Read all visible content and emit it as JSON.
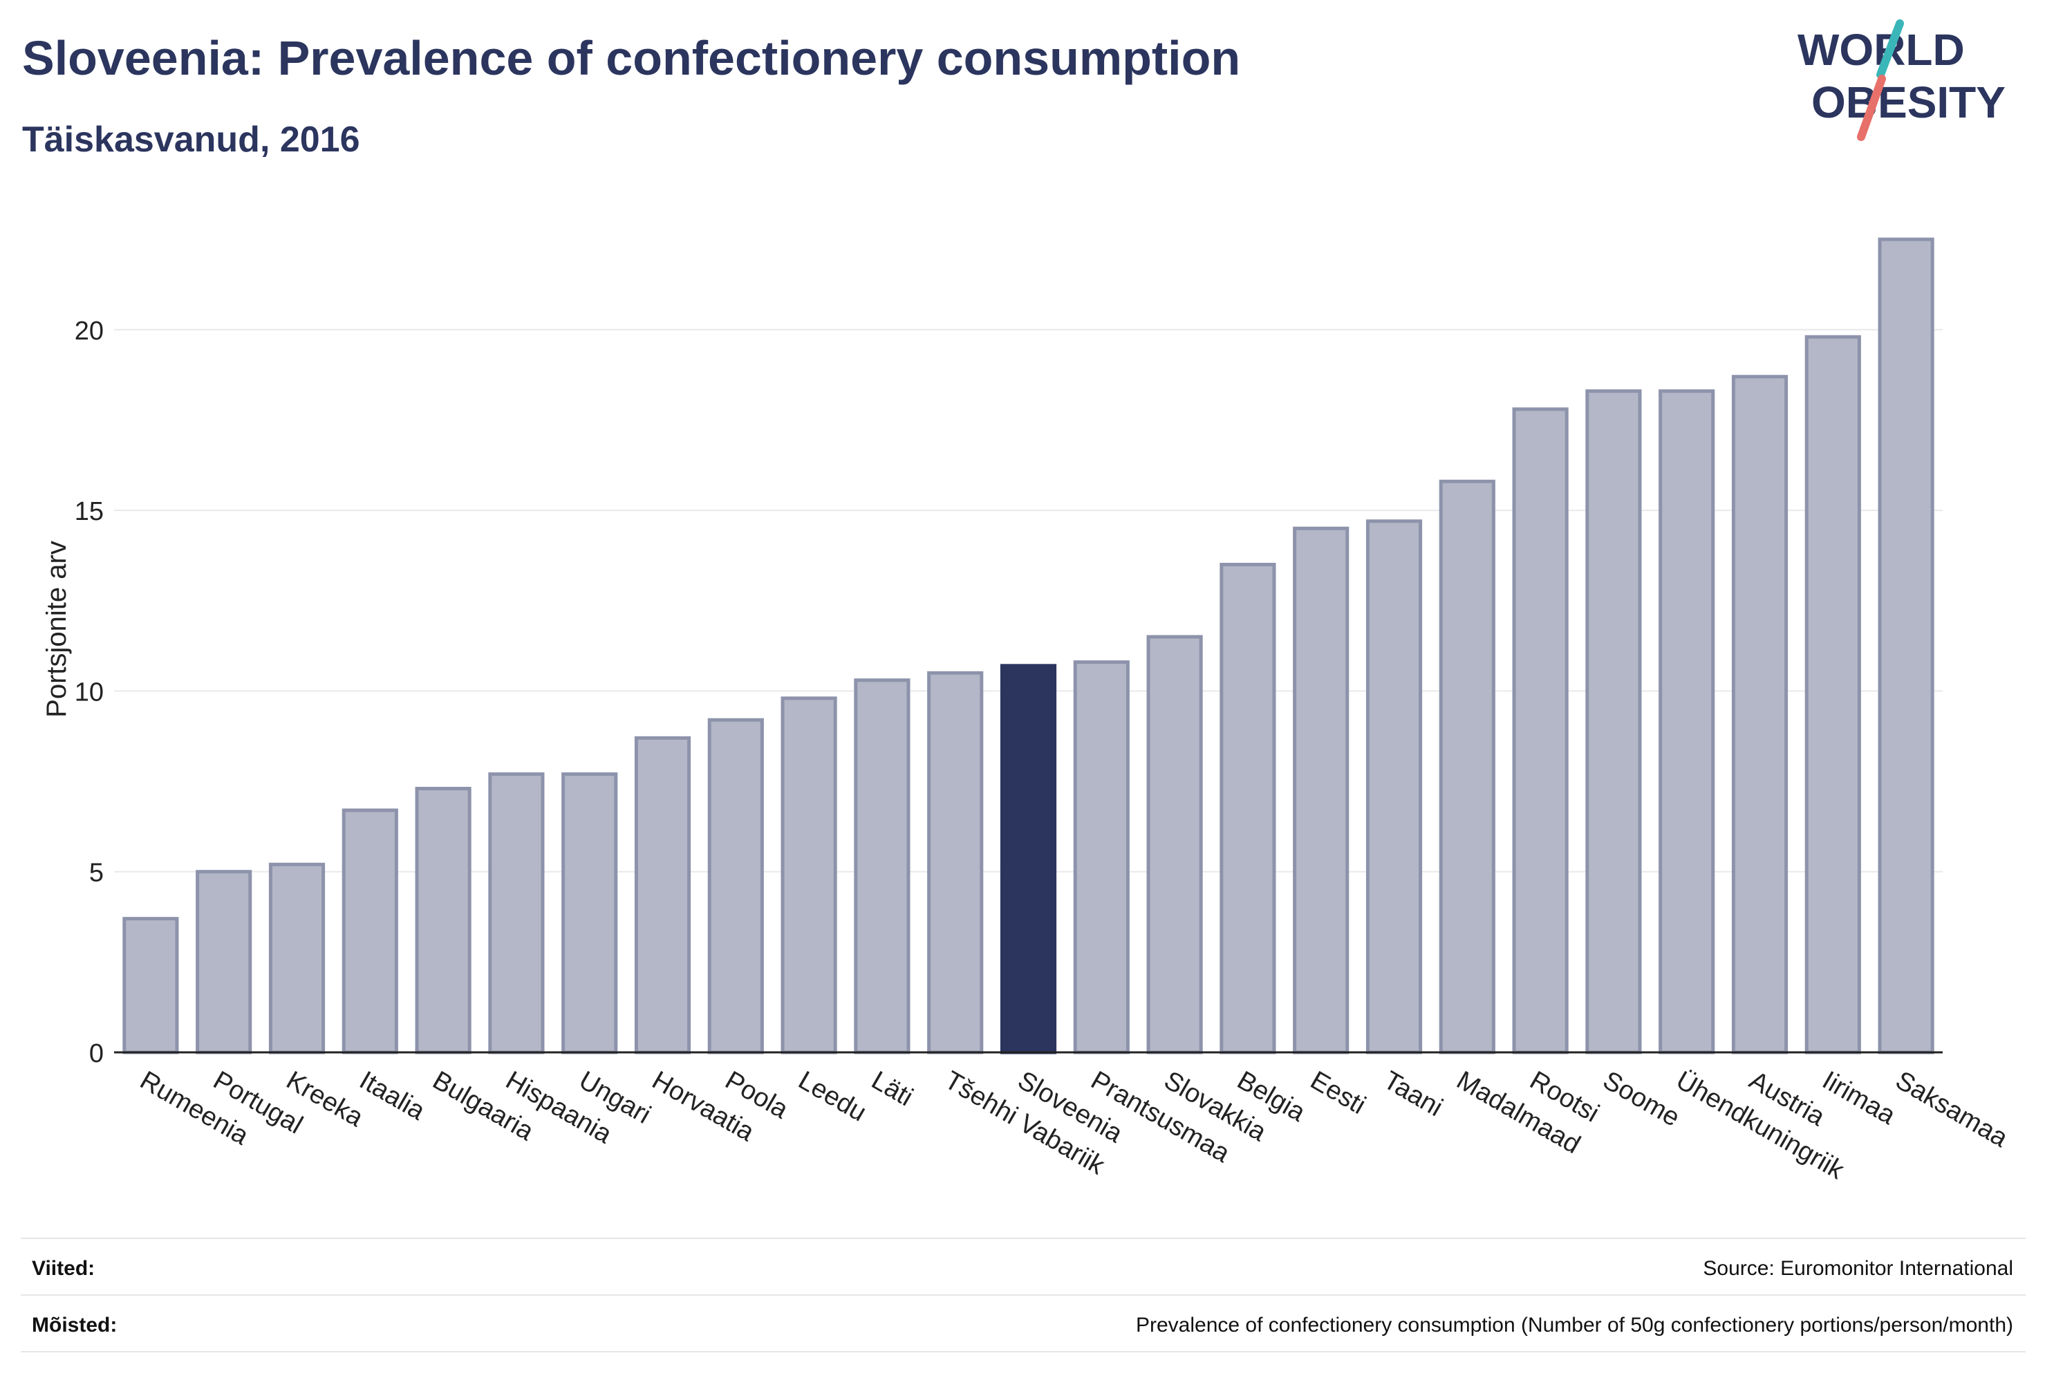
{
  "header": {
    "title": "Sloveenia: Prevalence of confectionery consumption",
    "subtitle": "Täiskasvanud, 2016"
  },
  "logo": {
    "line1": "WORLD",
    "line2": "OBESITY",
    "accent_teal": "#3ab6b8",
    "accent_coral": "#e8706a",
    "text_color": "#2b355e"
  },
  "chart_data": {
    "type": "bar",
    "ylabel": "Portsjonite arv",
    "xlabel": "",
    "ylim": [
      0,
      23
    ],
    "yticks": [
      0,
      5,
      10,
      15,
      20
    ],
    "grid": true,
    "highlight": "Sloveenia",
    "bar_color": "#b3b7c7",
    "bar_edge_color": "#8d93ab",
    "highlight_color": "#2b355e",
    "categories": [
      "Rumeenia",
      "Portugal",
      "Kreeka",
      "Itaalia",
      "Bulgaaria",
      "Hispaania",
      "Ungari",
      "Horvaatia",
      "Poola",
      "Leedu",
      "Läti",
      "Tšehhi Vabariik",
      "Sloveenia",
      "Prantsusmaa",
      "Slovakkia",
      "Belgia",
      "Eesti",
      "Taani",
      "Madalmaad",
      "Rootsi",
      "Soome",
      "Ühendkuningriik",
      "Austria",
      "Iirimaa",
      "Saksamaa"
    ],
    "values": [
      3.7,
      5.0,
      5.2,
      6.7,
      7.3,
      7.7,
      7.7,
      8.7,
      9.2,
      9.8,
      10.3,
      10.5,
      10.7,
      10.8,
      11.5,
      13.5,
      14.5,
      14.7,
      15.8,
      17.8,
      18.3,
      18.3,
      18.7,
      19.8,
      22.5
    ]
  },
  "footer": {
    "references_label": "Viited:",
    "references_value": "Source: Euromonitor International",
    "definitions_label": "Mõisted:",
    "definitions_value": "Prevalence of confectionery consumption (Number of 50g confectionery portions/person/month)"
  }
}
